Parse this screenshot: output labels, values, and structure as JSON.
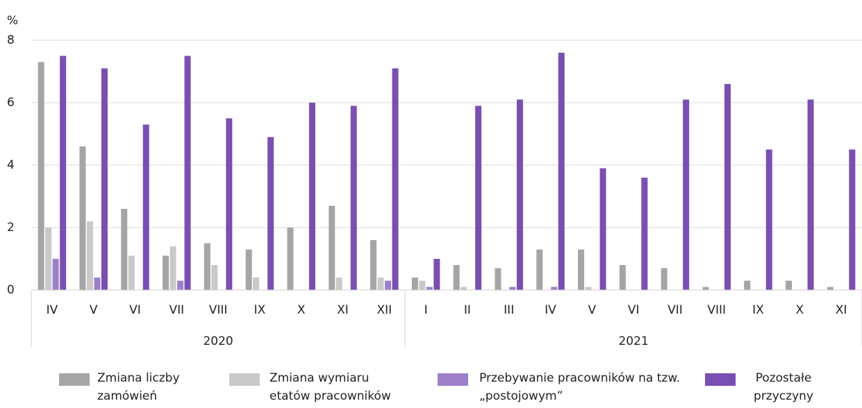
{
  "chart_data": {
    "type": "bar",
    "y_label": "%",
    "categories": [
      "IV",
      "V",
      "VI",
      "VII",
      "VIII",
      "IX",
      "X",
      "XI",
      "XII",
      "I",
      "II",
      "III",
      "IV",
      "V",
      "VI",
      "VII",
      "VIII",
      "IX",
      "X",
      "XI"
    ],
    "category_groups": [
      {
        "label": "2020",
        "count": 9
      },
      {
        "label": "2021",
        "count": 11
      }
    ],
    "ylim": [
      0,
      8
    ],
    "yticks": [
      0,
      2,
      4,
      6,
      8
    ],
    "grid": true,
    "series": [
      {
        "name": "Zmiana liczby zamówień",
        "color": "#a5a5a5",
        "values": [
          7.3,
          4.6,
          2.6,
          1.1,
          1.5,
          1.3,
          2.0,
          2.7,
          1.6,
          0.4,
          0.8,
          0.7,
          1.3,
          1.3,
          0.8,
          0.7,
          0.1,
          0.3,
          0.3,
          0.1
        ]
      },
      {
        "name": "Zmiana wymiaru etatów pracowników",
        "color": "#c9c9c9",
        "values": [
          2.0,
          2.2,
          1.1,
          1.4,
          0.8,
          0.4,
          0,
          0.4,
          0.4,
          0.3,
          0.1,
          0,
          0,
          0.1,
          0,
          0,
          0,
          0,
          0,
          0
        ]
      },
      {
        "name": "Przebywanie pracowników na tzw. „postojowym”",
        "color": "#9d80c9",
        "values": [
          1.0,
          0.4,
          0,
          0.3,
          0,
          0,
          0,
          0,
          0.3,
          0.1,
          0,
          0.1,
          0.1,
          0,
          0,
          0,
          0,
          0,
          0,
          0
        ]
      },
      {
        "name": "Pozostałe przyczyny",
        "color": "#7a4fb2",
        "values": [
          7.5,
          7.1,
          5.3,
          7.5,
          5.5,
          4.9,
          6.0,
          5.9,
          7.1,
          1.0,
          5.9,
          6.1,
          7.6,
          3.9,
          3.6,
          6.1,
          6.6,
          4.5,
          6.1,
          4.5
        ]
      }
    ],
    "legend": "bottom"
  }
}
